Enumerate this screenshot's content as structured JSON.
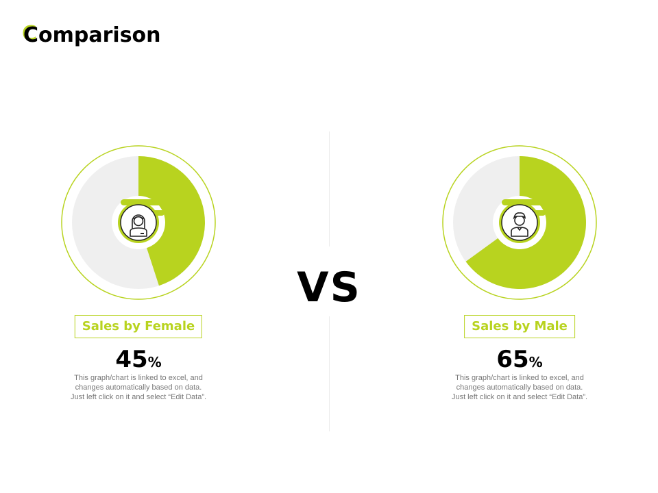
{
  "title": {
    "first_letter": "C",
    "rest": "omparison"
  },
  "vs_label": "VS",
  "colors": {
    "accent": "#b8d31f",
    "track": "#efefef",
    "text": "#000000",
    "muted": "#777777"
  },
  "chart_data": [
    {
      "type": "pie",
      "variant": "donut",
      "title": "Sales by Female",
      "value": 45,
      "unit": "%",
      "icon": "female-user-icon",
      "description": "This graph/chart is linked to excel, and changes automatically based on data. Just left click on it and select “Edit Data”."
    },
    {
      "type": "pie",
      "variant": "donut",
      "title": "Sales by Male",
      "value": 65,
      "unit": "%",
      "icon": "male-user-icon",
      "description": "This graph/chart is linked to excel, and changes automatically based on data. Just left click on it and select “Edit Data”."
    }
  ]
}
